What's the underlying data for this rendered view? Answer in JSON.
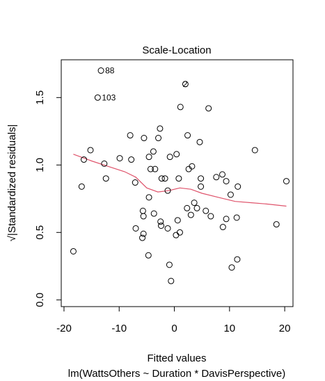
{
  "chart_data": {
    "type": "scatter",
    "title": "Scale-Location",
    "xlabel": "Fitted values",
    "sublabel": "lm(WattsOthers ~ Duration * DavisPerspective)",
    "ylabel": "√|Standardized residuals|",
    "xlim": [
      -20.5,
      21.5
    ],
    "ylim": [
      -0.05,
      1.78
    ],
    "xticks": [
      -20,
      -10,
      0,
      10,
      20
    ],
    "yticks": [
      0.0,
      0.5,
      1.0,
      1.5
    ],
    "xtick_labels": [
      "-20",
      "-10",
      "0",
      "10",
      "20"
    ],
    "ytick_labels": [
      "0.0",
      "0.5",
      "1.0",
      "1.5"
    ],
    "point_style": "open-circle",
    "smooth_color": "#DF536B",
    "points": [
      {
        "x": -18.3,
        "y": 0.36
      },
      {
        "x": -16.8,
        "y": 0.84
      },
      {
        "x": -16.4,
        "y": 1.04
      },
      {
        "x": -15.2,
        "y": 1.11
      },
      {
        "x": -13.3,
        "y": 1.7,
        "label": "88"
      },
      {
        "x": -13.9,
        "y": 1.5,
        "label": "103"
      },
      {
        "x": -12.7,
        "y": 1.01
      },
      {
        "x": -12.4,
        "y": 0.9
      },
      {
        "x": -9.9,
        "y": 1.05
      },
      {
        "x": -8.0,
        "y": 1.22
      },
      {
        "x": -7.8,
        "y": 1.04
      },
      {
        "x": -7.1,
        "y": 0.87
      },
      {
        "x": -7.0,
        "y": 0.53
      },
      {
        "x": -5.8,
        "y": 0.46
      },
      {
        "x": -5.6,
        "y": 0.49
      },
      {
        "x": -5.6,
        "y": 0.62
      },
      {
        "x": -5.7,
        "y": 0.66
      },
      {
        "x": -5.5,
        "y": 1.2
      },
      {
        "x": -4.7,
        "y": 0.33
      },
      {
        "x": -4.6,
        "y": 0.76
      },
      {
        "x": -4.6,
        "y": 1.06
      },
      {
        "x": -4.3,
        "y": 0.97
      },
      {
        "x": -3.8,
        "y": 1.1
      },
      {
        "x": -3.7,
        "y": 0.64
      },
      {
        "x": -3.5,
        "y": 0.97
      },
      {
        "x": -2.9,
        "y": 1.2
      },
      {
        "x": -2.6,
        "y": 1.27
      },
      {
        "x": -2.5,
        "y": 0.58
      },
      {
        "x": -2.4,
        "y": 0.55
      },
      {
        "x": -2.3,
        "y": 0.9
      },
      {
        "x": -1.7,
        "y": 0.9
      },
      {
        "x": -1.2,
        "y": 0.53
      },
      {
        "x": -1.2,
        "y": 0.81
      },
      {
        "x": -0.9,
        "y": 0.26
      },
      {
        "x": -0.8,
        "y": 1.06
      },
      {
        "x": -0.6,
        "y": 0.14
      },
      {
        "x": 0.3,
        "y": 0.48
      },
      {
        "x": 0.4,
        "y": 1.08
      },
      {
        "x": 0.6,
        "y": 0.59
      },
      {
        "x": 0.8,
        "y": 0.9
      },
      {
        "x": 1.0,
        "y": 0.5
      },
      {
        "x": 1.1,
        "y": 1.43
      },
      {
        "x": 2.0,
        "y": 1.6,
        "label": "2"
      },
      {
        "x": 2.3,
        "y": 0.68
      },
      {
        "x": 2.4,
        "y": 1.22
      },
      {
        "x": 2.6,
        "y": 0.97
      },
      {
        "x": 3.0,
        "y": 0.63
      },
      {
        "x": 3.2,
        "y": 0.99
      },
      {
        "x": 3.6,
        "y": 0.72
      },
      {
        "x": 4.1,
        "y": 0.68
      },
      {
        "x": 4.6,
        "y": 1.17
      },
      {
        "x": 4.8,
        "y": 0.9
      },
      {
        "x": 4.8,
        "y": 0.84
      },
      {
        "x": 5.7,
        "y": 0.66
      },
      {
        "x": 6.2,
        "y": 1.42
      },
      {
        "x": 6.6,
        "y": 0.62
      },
      {
        "x": 7.6,
        "y": 0.91
      },
      {
        "x": 8.7,
        "y": 0.93
      },
      {
        "x": 8.8,
        "y": 0.54
      },
      {
        "x": 9.4,
        "y": 0.6
      },
      {
        "x": 9.4,
        "y": 0.88
      },
      {
        "x": 10.2,
        "y": 0.78
      },
      {
        "x": 10.4,
        "y": 0.24
      },
      {
        "x": 11.3,
        "y": 0.61
      },
      {
        "x": 11.4,
        "y": 0.3
      },
      {
        "x": 11.5,
        "y": 0.84
      },
      {
        "x": 14.6,
        "y": 1.11
      },
      {
        "x": 18.5,
        "y": 0.56
      },
      {
        "x": 20.3,
        "y": 0.88
      }
    ],
    "smooth": {
      "x": [
        -18.3,
        -15,
        -12,
        -9,
        -7,
        -5,
        -3,
        -1,
        1,
        3,
        5,
        8,
        11,
        14,
        17,
        20.3
      ],
      "y": [
        1.08,
        1.03,
        0.99,
        0.95,
        0.91,
        0.83,
        0.8,
        0.81,
        0.83,
        0.82,
        0.79,
        0.76,
        0.73,
        0.72,
        0.71,
        0.695
      ]
    }
  }
}
